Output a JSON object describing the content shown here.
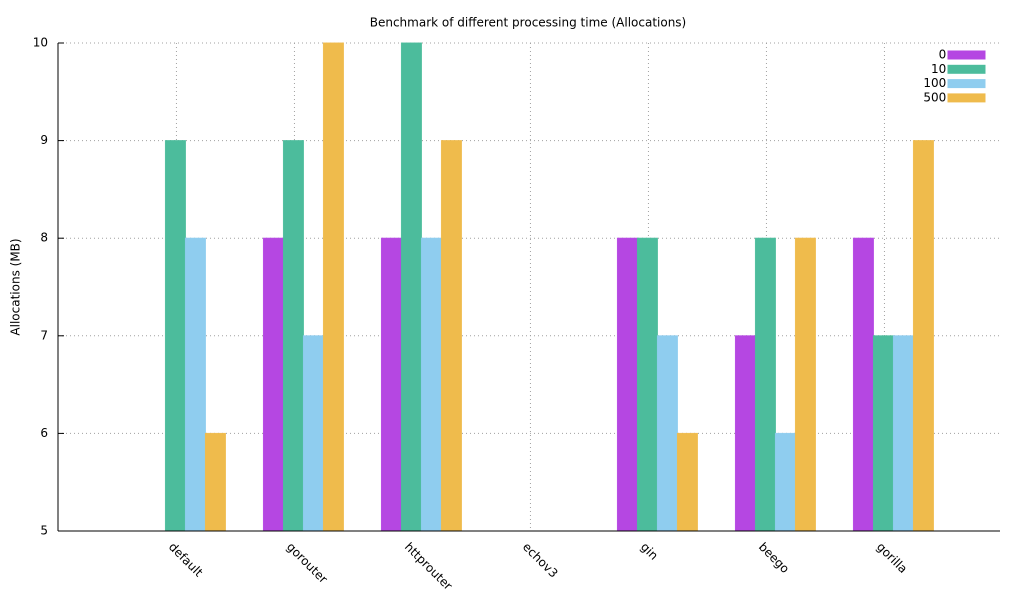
{
  "chart_data": {
    "type": "bar",
    "title": "Benchmark of different processing time (Allocations)",
    "y_label": "Allocations (MB)",
    "categories": [
      "default",
      "gorouter",
      "httprouter",
      "echov3",
      "gin",
      "beego",
      "gorilla"
    ],
    "series": [
      {
        "name": "0 ms",
        "color": "#b547e2",
        "values": [
          null,
          8,
          8,
          null,
          8,
          7,
          8
        ]
      },
      {
        "name": "10 ms",
        "color": "#4cbc9c",
        "values": [
          9,
          9,
          10,
          null,
          8,
          8,
          7
        ]
      },
      {
        "name": "100 ms",
        "color": "#8fcdef",
        "values": [
          8,
          7,
          8,
          null,
          7,
          6,
          7
        ]
      },
      {
        "name": "500 ms",
        "color": "#efbb4c",
        "values": [
          6,
          10,
          9,
          null,
          6,
          8,
          9
        ]
      }
    ],
    "ylim": [
      5,
      10
    ],
    "yticks": [
      5,
      6,
      7,
      8,
      9,
      10
    ],
    "grid": true,
    "legend": "top-right"
  }
}
